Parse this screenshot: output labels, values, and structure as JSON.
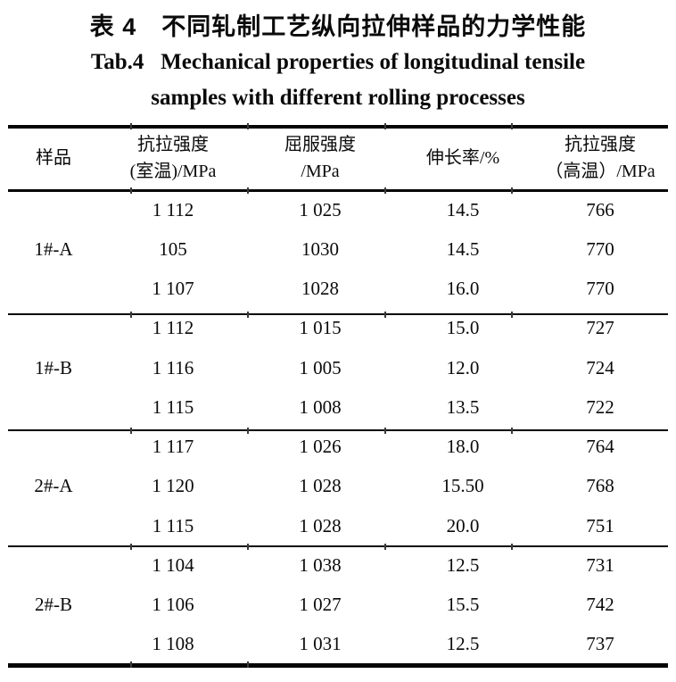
{
  "title": {
    "zh": "表 4　不同轧制工艺纵向拉伸样品的力学性能",
    "en_line1": "Tab.4   Mechanical properties of longitudinal tensile",
    "en_line2": "samples with different rolling processes"
  },
  "table": {
    "headers": {
      "sample": "样品",
      "tensile_rt": "抗拉强度\n(室温)/MPa",
      "yield": "屈服强度\n/MPa",
      "elongation": "伸长率/%",
      "tensile_ht": "抗拉强度\n（高温）/MPa"
    },
    "groups": [
      {
        "sample": "1#-A",
        "rows": [
          [
            "1 112",
            "1 025",
            "14.5",
            "766"
          ],
          [
            "105",
            "1030",
            "14.5",
            "770"
          ],
          [
            "1 107",
            "1028",
            "16.0",
            "770"
          ]
        ]
      },
      {
        "sample": "1#-B",
        "rows": [
          [
            "1 112",
            "1 015",
            "15.0",
            "727"
          ],
          [
            "1 116",
            "1 005",
            "12.0",
            "724"
          ],
          [
            "1 115",
            "1 008",
            "13.5",
            "722"
          ]
        ]
      },
      {
        "sample": "2#-A",
        "rows": [
          [
            "1 117",
            "1 026",
            "18.0",
            "764"
          ],
          [
            "1 120",
            "1 028",
            "15.50",
            "768"
          ],
          [
            "1 115",
            "1 028",
            "20.0",
            "751"
          ]
        ]
      },
      {
        "sample": "2#-B",
        "rows": [
          [
            "1 104",
            "1 038",
            "12.5",
            "731"
          ],
          [
            "1 106",
            "1 027",
            "15.5",
            "742"
          ],
          [
            "1 108",
            "1 031",
            "12.5",
            "737"
          ]
        ]
      }
    ]
  }
}
